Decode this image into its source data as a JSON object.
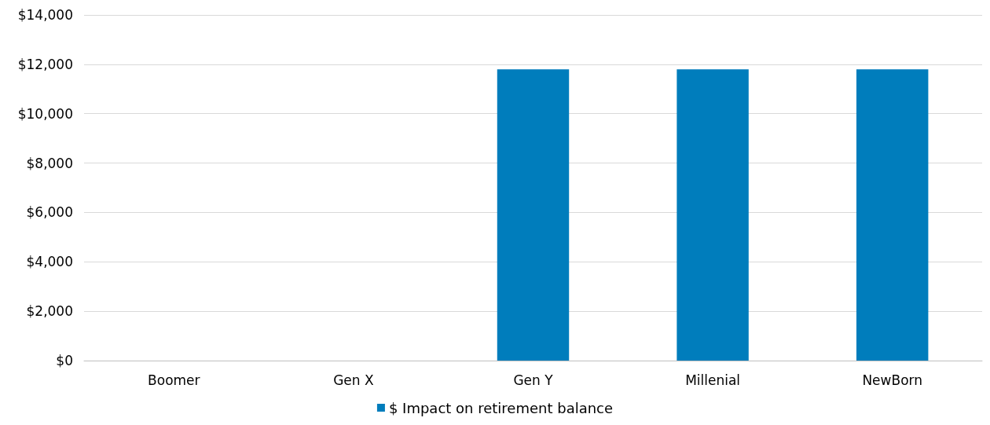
{
  "chart_data": {
    "type": "bar",
    "categories": [
      "Boomer",
      "Gen X",
      "Gen Y",
      "Millenial",
      "NewBorn"
    ],
    "series": [
      {
        "name": "$ Impact on retirement balance",
        "color": "#007dbc",
        "values": [
          0,
          0,
          11800,
          11800,
          11800
        ]
      }
    ],
    "ylim": [
      0,
      14000
    ],
    "yticks": [
      {
        "value": 0,
        "label": "$0"
      },
      {
        "value": 2000,
        "label": "$2,000"
      },
      {
        "value": 4000,
        "label": "$4,000"
      },
      {
        "value": 6000,
        "label": "$6,000"
      },
      {
        "value": 8000,
        "label": "$8,000"
      },
      {
        "value": 10000,
        "label": "$10,000"
      },
      {
        "value": 12000,
        "label": "$12,000"
      },
      {
        "value": 14000,
        "label": "$14,000"
      }
    ],
    "grid": "y",
    "legend": "bottom"
  }
}
